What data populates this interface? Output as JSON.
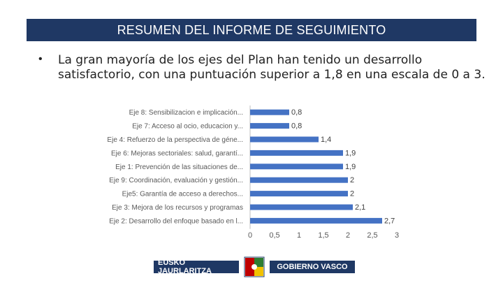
{
  "header": {
    "title": "RESUMEN DEL INFORME DE SEGUIMIENTO"
  },
  "bullet": {
    "marker": "•",
    "text": "La gran mayoría de los ejes del Plan han tenido un desarrollo satisfactorio, con una puntuación superior a 1,8 en una escala de 0 a 3."
  },
  "chart_data": {
    "type": "bar",
    "orientation": "horizontal",
    "categories": [
      "Eje 8: Sensibilizacion e implicación...",
      "Eje 7: Acceso al ocio, educacion y...",
      "Eje 4: Refuerzo de la perspectiva de géne...",
      "Eje 6: Mejoras sectoriales: salud, garantí...",
      "Eje 1: Prevención de las situaciones de...",
      "Eje 9: Coordinación, evaluación y gestión...",
      "Eje5: Garantía de acceso a derechos...",
      "Eje 3: Mejora de los recursos y programas",
      "Eje 2: Desarrollo del enfoque basado en l..."
    ],
    "values": [
      0.8,
      0.8,
      1.4,
      1.9,
      1.9,
      2,
      2,
      2.1,
      2.7
    ],
    "value_labels": [
      "0,8",
      "0,8",
      "1,4",
      "1,9",
      "1,9",
      "2",
      "2",
      "2,1",
      "2,7"
    ],
    "xticks": [
      "0",
      "0,5",
      "1",
      "1,5",
      "2",
      "2,5",
      "3"
    ],
    "xlim": [
      0,
      3
    ],
    "bar_color": "#4472c4",
    "grid": false,
    "legend": "none"
  },
  "footer": {
    "left_text": "EUSKO JAURLARITZA",
    "right_text": "GOBIERNO VASCO",
    "brand_color": "#1f3864"
  }
}
